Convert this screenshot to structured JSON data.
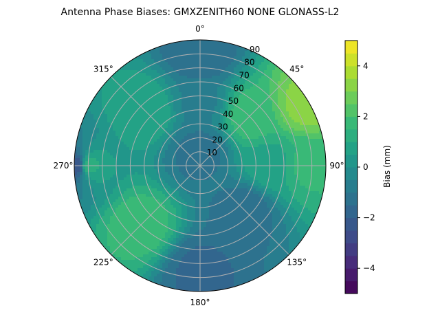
{
  "chart_data": {
    "type": "polar-contour",
    "title": "Antenna Phase Biases: GMXZENITH60     NONE GLONASS-L2",
    "angle_ticks": [
      "0°",
      "45°",
      "90°",
      "135°",
      "180°",
      "225°",
      "270°",
      "315°"
    ],
    "radial_ticks": [
      10,
      20,
      30,
      40,
      50,
      60,
      70,
      80,
      90
    ],
    "radial_range": [
      0,
      90
    ],
    "grid": true,
    "colorbar": {
      "label": "Bias (mm)",
      "ticks": [
        -4,
        -2,
        0,
        2,
        4
      ],
      "range": [
        -5,
        5
      ],
      "levels": [
        -5,
        -4.5,
        -4,
        -3.5,
        -3,
        -2.5,
        -2,
        -1.5,
        -1,
        -0.5,
        0,
        0.5,
        1,
        1.5,
        2,
        2.5,
        3,
        3.5,
        4,
        4.5,
        5
      ],
      "colormap": "viridis"
    },
    "bias_field_samples": [
      {
        "azimuth": 0,
        "zenith": 10,
        "bias": -1.2
      },
      {
        "azimuth": 0,
        "zenith": 45,
        "bias": -0.6
      },
      {
        "azimuth": 0,
        "zenith": 80,
        "bias": -1.5
      },
      {
        "azimuth": 45,
        "zenith": 50,
        "bias": 1.8
      },
      {
        "azimuth": 60,
        "zenith": 88,
        "bias": 3.2
      },
      {
        "azimuth": 90,
        "zenith": 50,
        "bias": 0.8
      },
      {
        "azimuth": 90,
        "zenith": 78,
        "bias": 1.6
      },
      {
        "azimuth": 135,
        "zenith": 45,
        "bias": -1.3
      },
      {
        "azimuth": 180,
        "zenith": 75,
        "bias": -1.6
      },
      {
        "azimuth": 225,
        "zenith": 60,
        "bias": 1.8
      },
      {
        "azimuth": 270,
        "zenith": 80,
        "bias": 1.2
      },
      {
        "azimuth": 270,
        "zenith": 88,
        "bias": -2.3
      },
      {
        "azimuth": 315,
        "zenith": 55,
        "bias": 1.0
      }
    ]
  }
}
